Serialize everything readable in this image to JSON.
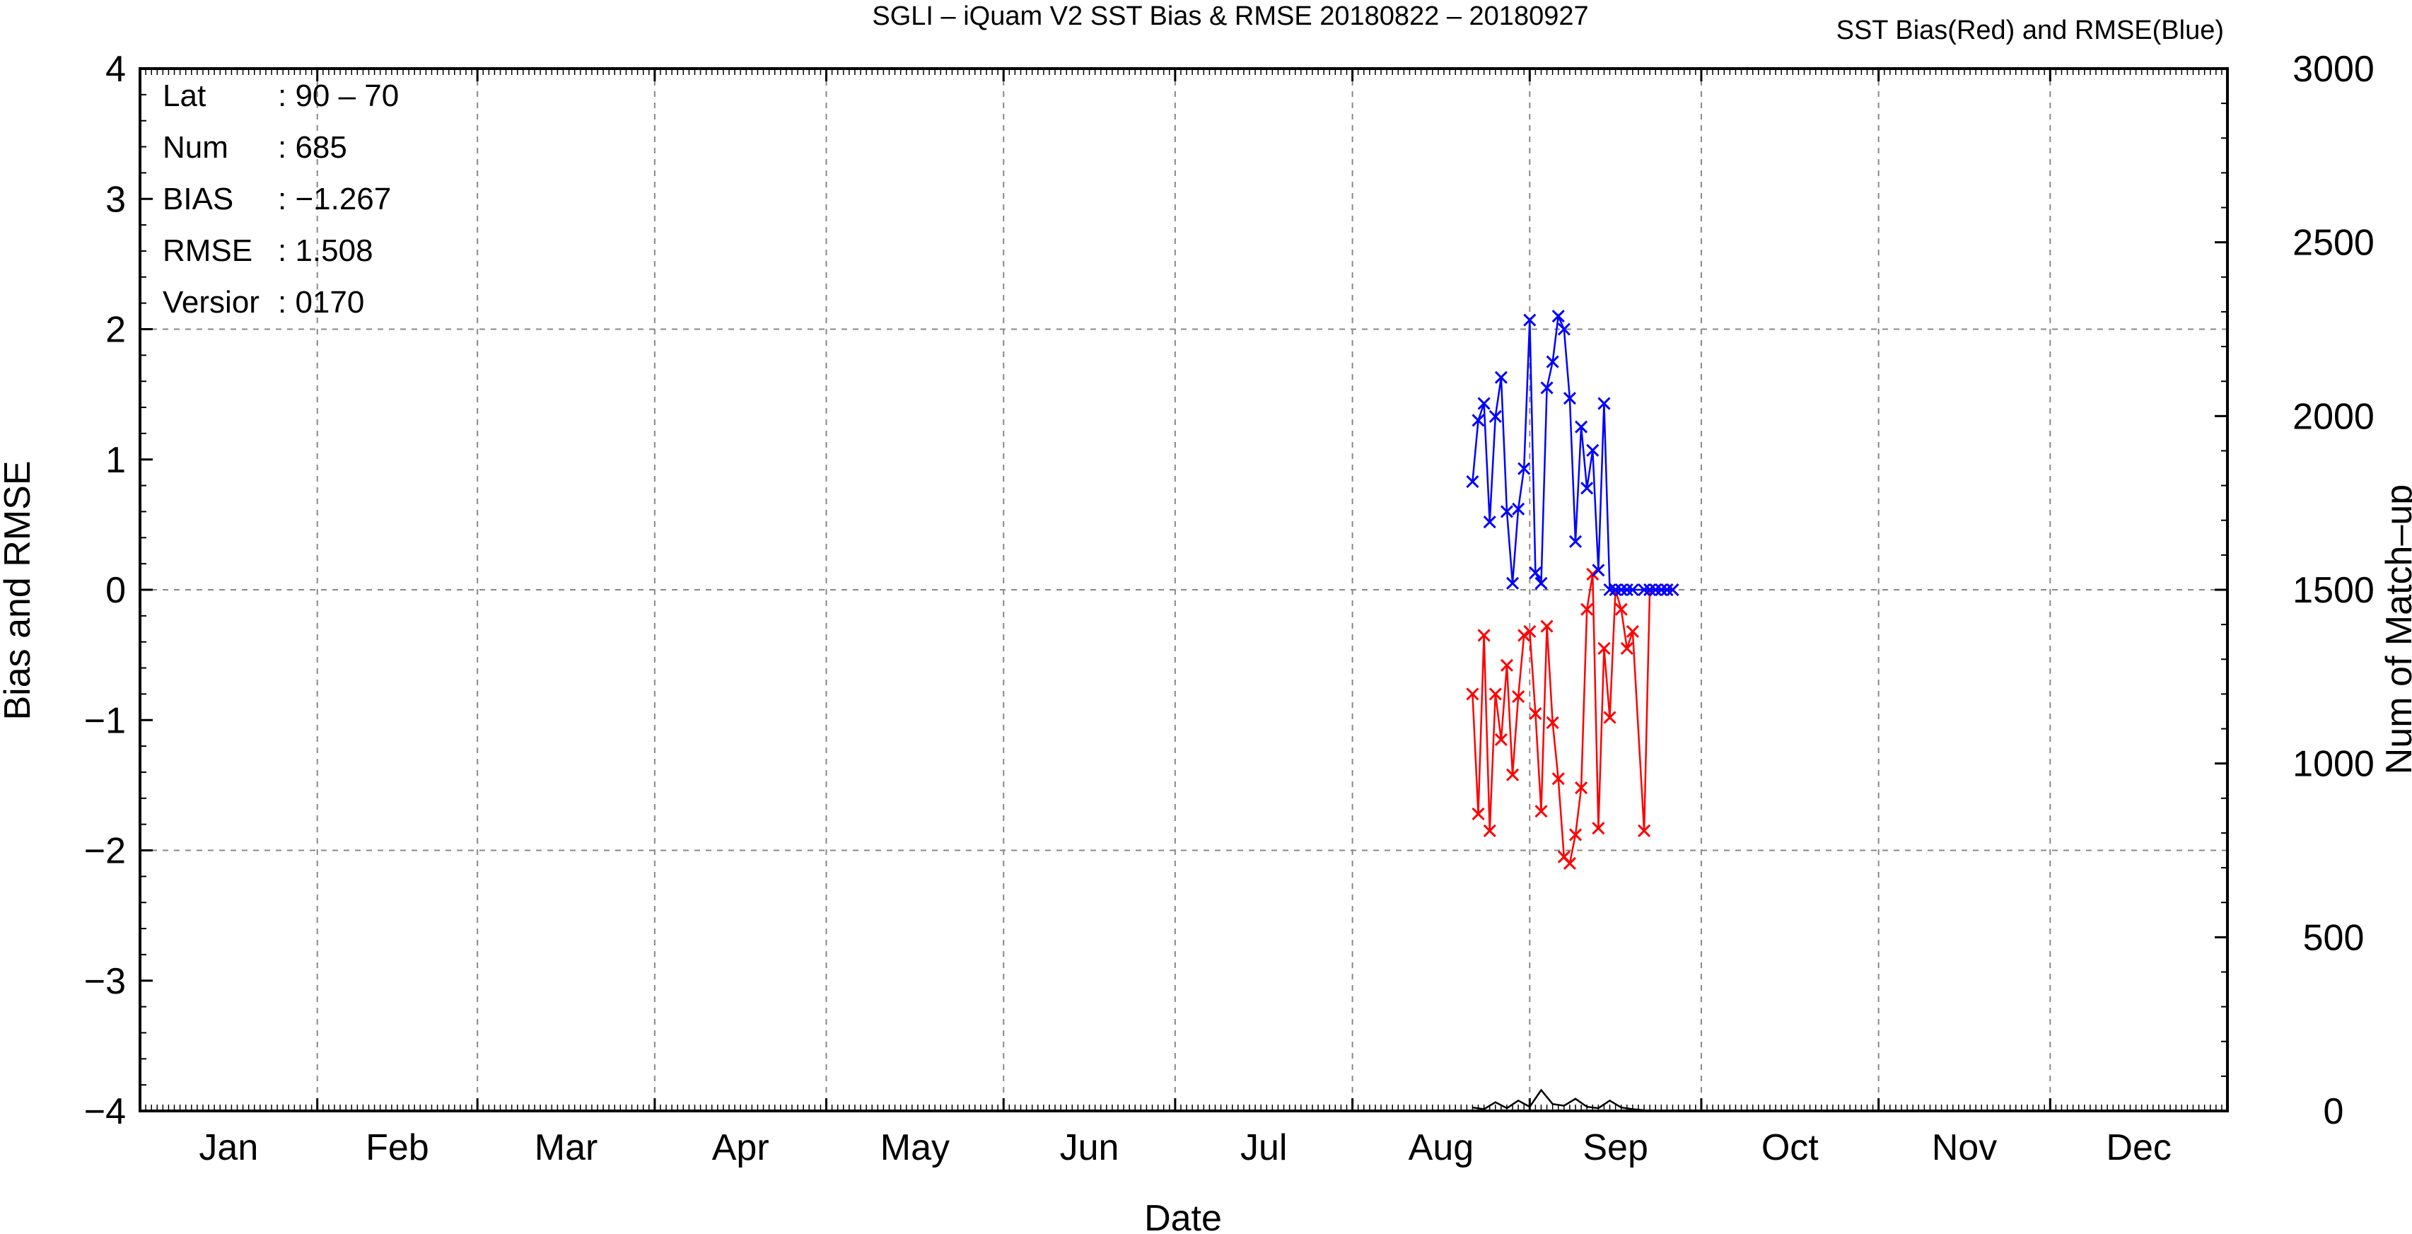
{
  "chart_data": {
    "type": "line",
    "title": "SGLI – iQuam V2 SST Bias & RMSE 20180822 – 20180927",
    "subtitle": "SST Bias(Red) and RMSE(Blue)",
    "xlabel": "Date",
    "ylabel": "Bias and RMSE",
    "y2label": "Num of Match–up",
    "categories": [
      "Jan",
      "Feb",
      "Mar",
      "Apr",
      "May",
      "Jun",
      "Jul",
      "Aug",
      "Sep",
      "Oct",
      "Nov",
      "Dec"
    ],
    "x_range_day_of_year": [
      1,
      366
    ],
    "ylim": [
      -4,
      4
    ],
    "y2lim": [
      0,
      3000
    ],
    "yticks": [
      "4",
      "3",
      "2",
      "1",
      "0",
      "−1",
      "−2",
      "−3",
      "−4"
    ],
    "y2ticks": [
      "3000",
      "2500",
      "2000",
      "1500",
      "1000",
      "500",
      "0"
    ],
    "grid": true,
    "info": [
      {
        "label": "Lat",
        "value": ": 90 – 70"
      },
      {
        "label": "Num",
        "value": ": 685"
      },
      {
        "label": "BIAS",
        "value": ": −1.267"
      },
      {
        "label": "RMSE",
        "value": ": 1.508"
      },
      {
        "label": "Versior",
        "value": ": 0170"
      }
    ],
    "colors": {
      "bias": "#ff0000",
      "rmse": "#0000ff",
      "count": "#000000",
      "grid": "#888888"
    },
    "series": [
      {
        "name": "SST Bias(Red)",
        "axis": "left",
        "color": "#ff0000",
        "x": [
          234,
          235,
          236,
          237,
          238,
          239,
          240,
          241,
          242,
          243,
          244,
          245,
          246,
          247,
          248,
          249,
          250,
          251,
          252,
          253,
          254,
          255,
          256,
          257,
          258,
          259,
          260,
          261,
          262,
          264,
          265,
          266,
          267,
          268,
          269
        ],
        "y": [
          -0.8,
          -1.72,
          -0.35,
          -1.85,
          -0.8,
          -1.15,
          -0.58,
          -1.42,
          -0.82,
          -0.35,
          -0.32,
          -0.95,
          -1.7,
          -0.28,
          -1.02,
          -1.45,
          -2.05,
          -2.1,
          -1.88,
          -1.52,
          -0.15,
          0.12,
          -1.83,
          -0.45,
          -0.98,
          0.0,
          -0.15,
          -0.45,
          -0.32,
          -1.85,
          0.0,
          0.0,
          0.0,
          0.0,
          0.0
        ]
      },
      {
        "name": "RMSE(Blue)",
        "axis": "left",
        "color": "#0000ff",
        "x": [
          234,
          235,
          236,
          237,
          238,
          239,
          240,
          241,
          242,
          243,
          244,
          245,
          246,
          247,
          248,
          249,
          250,
          251,
          252,
          253,
          254,
          255,
          256,
          257,
          258,
          259,
          260,
          261,
          262,
          264,
          265,
          266,
          267,
          268,
          269
        ],
        "y": [
          0.83,
          1.3,
          1.43,
          0.52,
          1.33,
          1.63,
          0.6,
          0.05,
          0.62,
          0.93,
          2.07,
          0.13,
          0.05,
          1.55,
          1.75,
          2.1,
          2.0,
          1.47,
          0.37,
          1.25,
          0.78,
          1.07,
          0.15,
          1.43,
          0.0,
          0.0,
          0.0,
          0.0,
          0.0,
          0.0,
          0.0,
          0.0,
          0.0,
          0.0,
          0.0
        ]
      },
      {
        "name": "",
        "axis": "right",
        "color": "#000000",
        "x": [
          234,
          236,
          238,
          240,
          242,
          244,
          246,
          248,
          250,
          252,
          254,
          256,
          258,
          260,
          262,
          264
        ],
        "y": [
          10,
          5,
          25,
          8,
          30,
          12,
          60,
          20,
          15,
          35,
          12,
          8,
          30,
          10,
          5,
          2
        ]
      }
    ]
  }
}
